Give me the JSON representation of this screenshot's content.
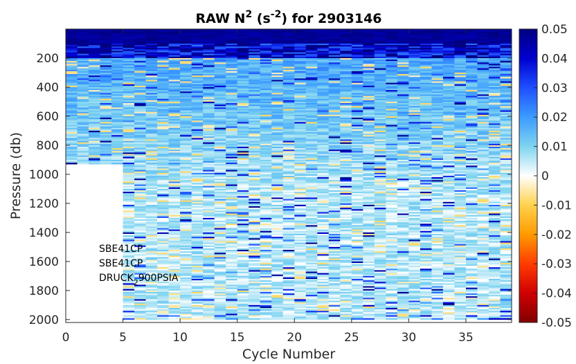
{
  "chart_data": {
    "type": "heatmap",
    "title": {
      "prefix": "RAW N",
      "sup1": "2",
      "mid": " (s",
      "sup2": "-2",
      "suffix": ") for 2903146"
    },
    "xlabel": "Cycle Number",
    "ylabel": "Pressure (db)",
    "xlim": [
      0,
      39
    ],
    "ylim": [
      0,
      2020
    ],
    "y_reversed": true,
    "x_ticks": [
      0,
      5,
      10,
      15,
      20,
      25,
      30,
      35
    ],
    "y_ticks": [
      200,
      400,
      600,
      800,
      1000,
      1200,
      1400,
      1600,
      1800,
      2000
    ],
    "colorbar": {
      "min": -0.05,
      "max": 0.05,
      "ticks": [
        "0.05",
        "0.04",
        "0.03",
        "0.02",
        "0.01",
        "0",
        "-0.01",
        "-0.02",
        "-0.03",
        "-0.04",
        "-0.05"
      ],
      "colormap": "jet-with-white-center"
    },
    "pressure_range": [
      0,
      2000
    ],
    "surface_layer_value": 0.05,
    "cycles": [
      {
        "cycle": 1,
        "max_pressure": 930
      },
      {
        "cycle": 2,
        "max_pressure": 2000
      },
      {
        "cycle": 3,
        "max_pressure": 2000
      },
      {
        "cycle": 4,
        "max_pressure": 2000
      },
      {
        "cycle": 5,
        "max_pressure": 2000
      }
    ],
    "data_gap": {
      "cycles_from": 2,
      "cycles_to": 5,
      "pressure_from": 930,
      "pressure_to": 2000
    },
    "annotations": {
      "line1": "SBE41CP",
      "line2": "SBE41CP",
      "line3_main": "DRUCK",
      "line3_sub": "2",
      "line3_rest": "900PSIA"
    }
  }
}
